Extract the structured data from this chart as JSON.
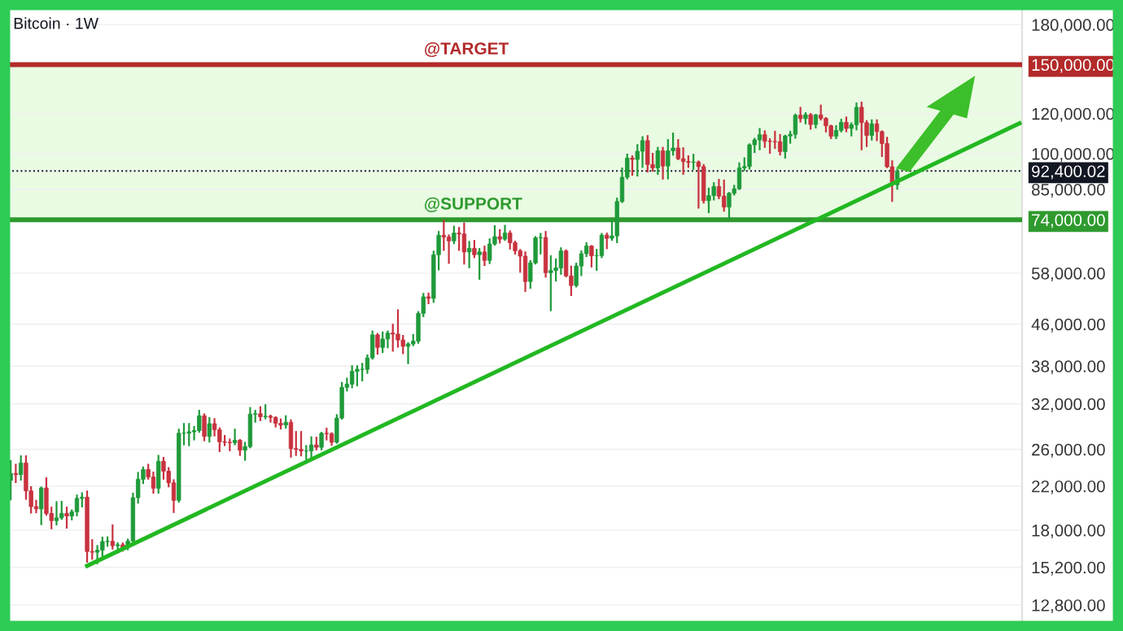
{
  "chart_data": {
    "type": "candlestick",
    "title": "Bitcoin · 1W",
    "categories": [
      null,
      null,
      null,
      null,
      null,
      null,
      null,
      null,
      null,
      null,
      null,
      null,
      null,
      null,
      null,
      null,
      null,
      null,
      null,
      null,
      null,
      null,
      null,
      null,
      null,
      null,
      null,
      null,
      null,
      null,
      null,
      null,
      null,
      null,
      null,
      null,
      null,
      null,
      null,
      null,
      null,
      null,
      null,
      null,
      null,
      null,
      null,
      null,
      null,
      null,
      null,
      null,
      null,
      null,
      null,
      null,
      null,
      null,
      null,
      null,
      null,
      null,
      null,
      null,
      null,
      null,
      null,
      null,
      null,
      null,
      null,
      null,
      null,
      null,
      null,
      null,
      null,
      null,
      null,
      null,
      null,
      null,
      null,
      null,
      null,
      null,
      null,
      null,
      null,
      null,
      null,
      null,
      null,
      null,
      null,
      null,
      null,
      null,
      null,
      null,
      null,
      null,
      null,
      null,
      null,
      null,
      null,
      null,
      null,
      null,
      null,
      null,
      null,
      null,
      null,
      null,
      null,
      null,
      null,
      null,
      null,
      null,
      null,
      null,
      null,
      null,
      null,
      null,
      null,
      null,
      null,
      null,
      null,
      null,
      null,
      null,
      null,
      null,
      null,
      null,
      null,
      null,
      null,
      null,
      null,
      null,
      null,
      null,
      null,
      null,
      null,
      null,
      null,
      null,
      null,
      null,
      null,
      null,
      null,
      null,
      null,
      null,
      null,
      null,
      null,
      null,
      null,
      null,
      null,
      null,
      null,
      null,
      null,
      null,
      null,
      null,
      null,
      null,
      null,
      null,
      null,
      null,
      null,
      null,
      null,
      null,
      null,
      null,
      null,
      null,
      null,
      null,
      null,
      null,
      null,
      null,
      null,
      null,
      null
    ],
    "colors": [
      "#1f9a3a",
      "#c8323f",
      "#1f9a3a",
      "#c8323f",
      "#c8323f",
      "#c8323f",
      "#1f9a3a",
      "#c8323f",
      "#c8323f",
      "#1f9a3a",
      "#1f9a3a",
      "#c8323f",
      "#1f9a3a",
      "#1f9a3a",
      "#1f9a3a",
      "#c8323f",
      "#c8323f",
      "#1f9a3a",
      "#1f9a3a",
      "#1f9a3a",
      "#c8323f",
      "#1f9a3a",
      "#c8323f",
      "#1f9a3a",
      "#1f9a3a",
      "#1f9a3a",
      "#1f9a3a",
      "#c8323f",
      "#c8323f",
      "#1f9a3a",
      "#c8323f",
      "#c8323f",
      "#c8323f",
      "#1f9a3a",
      "#1f9a3a",
      "#1f9a3a",
      "#1f9a3a",
      "#1f9a3a",
      "#c8323f",
      "#1f9a3a",
      "#c8323f",
      "#c8323f",
      "#c8323f",
      "#c8323f",
      "#1f9a3a",
      "#c8323f",
      "#1f9a3a",
      "#1f9a3a",
      "#1f9a3a",
      "#c8323f",
      "#1f9a3a",
      "#c8323f",
      "#c8323f",
      "#c8323f",
      "#1f9a3a",
      "#c8323f",
      "#c8323f",
      "#c8323f",
      "#1f9a3a",
      "#1f9a3a",
      "#c8323f",
      "#1f9a3a",
      "#c8323f",
      "#c8323f",
      "#1f9a3a",
      "#1f9a3a",
      "#1f9a3a",
      "#1f9a3a",
      "#1f9a3a",
      "#1f9a3a",
      "#1f9a3a",
      "#1f9a3a",
      "#c8323f",
      "#1f9a3a",
      "#1f9a3a",
      "#c8323f",
      "#c8323f",
      "#c8323f",
      "#1f9a3a",
      "#1f9a3a",
      "#1f9a3a",
      "#1f9a3a",
      "#c8323f",
      "#1f9a3a",
      "#1f9a3a",
      "#c8323f",
      "#c8323f",
      "#1f9a3a",
      "#c8323f",
      "#c8323f",
      "#1f9a3a",
      "#c8323f",
      "#1f9a3a",
      "#c8323f",
      "#1f9a3a",
      "#1f9a3a",
      "#c8323f",
      "#1f9a3a",
      "#c8323f",
      "#c8323f",
      "#c8323f",
      "#c8323f",
      "#1f9a3a",
      "#1f9a3a",
      "#1f9a3a",
      "#c8323f",
      "#1f9a3a",
      "#1f9a3a",
      "#1f9a3a",
      "#c8323f",
      "#c8323f",
      "#1f9a3a",
      "#1f9a3a",
      "#1f9a3a",
      "#c8323f",
      "#1f9a3a",
      "#1f9a3a",
      "#c8323f",
      "#1f9a3a",
      "#1f9a3a",
      "#1f9a3a",
      "#1f9a3a",
      "#c8323f",
      "#1f9a3a",
      "#1f9a3a",
      "#c8323f",
      "#c8323f",
      "#1f9a3a",
      "#c8323f",
      "#1f9a3a",
      "#1f9a3a",
      "#c8323f",
      "#c8323f",
      "#c8323f",
      "#1f9a3a",
      "#c8323f",
      "#c8323f",
      "#1f9a3a",
      "#1f9a3a",
      "#c8323f",
      "#c8323f",
      "#1f9a3a",
      "#1f9a3a",
      "#1f9a3a",
      "#1f9a3a",
      "#1f9a3a",
      "#1f9a3a",
      "#1f9a3a",
      "#c8323f",
      "#c8323f",
      "#c8323f",
      "#c8323f",
      "#1f9a3a",
      "#1f9a3a",
      "#1f9a3a",
      "#c8323f",
      "#1f9a3a",
      "#c8323f",
      "#1f9a3a",
      "#c8323f",
      "#c8323f",
      "#c8323f",
      "#1f9a3a",
      "#1f9a3a",
      "#c8323f",
      "#1f9a3a",
      "#1f9a3a",
      "#c8323f",
      "#c8323f",
      "#1f9a3a",
      "#c8323f",
      "#c8323f",
      "#c8323f",
      "#c8323f",
      "#1f9a3a",
      null,
      null,
      null,
      null,
      null,
      null,
      null,
      null,
      null,
      null,
      null,
      null,
      null,
      null,
      null,
      null,
      null,
      null,
      null,
      null,
      null,
      null,
      null,
      null
    ],
    "ohlc": [
      [
        22580,
        24670,
        20700,
        23300
      ],
      [
        23300,
        24250,
        22400,
        23180
      ],
      [
        23180,
        25200,
        22650,
        24440
      ],
      [
        24440,
        25200,
        20760,
        21520
      ],
      [
        21520,
        21900,
        19500,
        20040
      ],
      [
        20040,
        20580,
        19520,
        19830
      ],
      [
        19830,
        21860,
        18500,
        21820
      ],
      [
        21820,
        22800,
        19300,
        19420
      ],
      [
        19420,
        19950,
        18150,
        18800
      ],
      [
        18800,
        20450,
        18470,
        19040
      ],
      [
        19040,
        20480,
        18950,
        19420
      ],
      [
        19420,
        19950,
        18200,
        19200
      ],
      [
        19200,
        19700,
        18900,
        19570
      ],
      [
        19570,
        21080,
        19250,
        20800
      ],
      [
        20800,
        21300,
        20050,
        20910
      ],
      [
        20910,
        21470,
        15590,
        16330
      ],
      [
        16330,
        17200,
        15800,
        16280
      ],
      [
        16280,
        16750,
        15480,
        16430
      ],
      [
        16430,
        17400,
        16010,
        17090
      ],
      [
        17090,
        17420,
        16760,
        17110
      ],
      [
        17110,
        18400,
        16550,
        16770
      ],
      [
        16770,
        16960,
        16270,
        16840
      ],
      [
        16840,
        16950,
        16400,
        16620
      ],
      [
        16620,
        17250,
        16500,
        17130
      ],
      [
        17130,
        21260,
        17130,
        20870
      ],
      [
        20870,
        23370,
        20400,
        22700
      ],
      [
        22700,
        23950,
        22300,
        23730
      ],
      [
        23730,
        24250,
        22750,
        22930
      ],
      [
        22930,
        23400,
        21350,
        21780
      ],
      [
        21780,
        25250,
        21350,
        24630
      ],
      [
        24630,
        25020,
        22750,
        23550
      ],
      [
        23550,
        23880,
        21970,
        22330
      ],
      [
        22330,
        22600,
        19550,
        20620
      ],
      [
        20620,
        28450,
        20480,
        27990
      ],
      [
        27990,
        29200,
        26600,
        27990
      ],
      [
        27990,
        29200,
        26500,
        28170
      ],
      [
        28170,
        28800,
        27200,
        28330
      ],
      [
        28330,
        31000,
        28170,
        30300
      ],
      [
        30300,
        30500,
        27100,
        27590
      ],
      [
        27590,
        30000,
        26950,
        29230
      ],
      [
        29230,
        29850,
        27700,
        28430
      ],
      [
        28430,
        28620,
        25800,
        26920
      ],
      [
        26920,
        27650,
        26500,
        26850
      ],
      [
        26850,
        27200,
        25900,
        26800
      ],
      [
        26800,
        28450,
        26600,
        27100
      ],
      [
        27100,
        27150,
        25350,
        25910
      ],
      [
        25910,
        26800,
        24800,
        26340
      ],
      [
        26340,
        31400,
        26250,
        30530
      ],
      [
        30530,
        31000,
        29500,
        30590
      ],
      [
        30590,
        31500,
        29700,
        30170
      ],
      [
        30170,
        31800,
        29950,
        30240
      ],
      [
        30240,
        30330,
        29500,
        30080
      ],
      [
        30080,
        30100,
        28850,
        29280
      ],
      [
        29280,
        29800,
        28600,
        29050
      ],
      [
        29050,
        30250,
        28700,
        29410
      ],
      [
        29410,
        29690,
        25150,
        26100
      ],
      [
        26100,
        28150,
        25350,
        26000
      ],
      [
        26000,
        28150,
        25300,
        25820
      ],
      [
        25820,
        26400,
        24900,
        25830
      ],
      [
        25830,
        27480,
        24900,
        26530
      ],
      [
        26530,
        27430,
        26000,
        26250
      ],
      [
        26250,
        28050,
        26000,
        27980
      ],
      [
        27980,
        28580,
        27200,
        27920
      ],
      [
        27920,
        28000,
        26550,
        26860
      ],
      [
        26860,
        30400,
        26800,
        29990
      ],
      [
        29990,
        35200,
        29900,
        34500
      ],
      [
        34500,
        35900,
        34000,
        35000
      ],
      [
        35000,
        38000,
        34500,
        37100
      ],
      [
        37100,
        37980,
        34800,
        37450
      ],
      [
        37450,
        38400,
        35600,
        37450
      ],
      [
        37450,
        39900,
        36850,
        39450
      ],
      [
        39450,
        44500,
        39300,
        43800
      ],
      [
        43800,
        44000,
        40200,
        41370
      ],
      [
        41370,
        44300,
        40500,
        42990
      ],
      [
        42990,
        44500,
        41400,
        44180
      ],
      [
        44180,
        45900,
        40750,
        43950
      ],
      [
        43950,
        49000,
        41500,
        42800
      ],
      [
        42800,
        43600,
        40300,
        41580
      ],
      [
        41580,
        42200,
        38500,
        42030
      ],
      [
        42030,
        43800,
        41800,
        42580
      ],
      [
        42580,
        48600,
        42250,
        48300
      ],
      [
        48300,
        52800,
        47700,
        52100
      ],
      [
        52100,
        52900,
        50600,
        51730
      ],
      [
        51730,
        64000,
        50900,
        63100
      ],
      [
        63100,
        70000,
        59000,
        68950
      ],
      [
        68950,
        73780,
        64500,
        68400
      ],
      [
        68400,
        68900,
        60800,
        67200
      ],
      [
        67200,
        71700,
        66500,
        69650
      ],
      [
        69650,
        71300,
        64500,
        69350
      ],
      [
        69350,
        72800,
        60600,
        63900
      ],
      [
        63900,
        66900,
        59600,
        64950
      ],
      [
        64950,
        67200,
        62400,
        63100
      ],
      [
        63100,
        64800,
        56550,
        63900
      ],
      [
        63900,
        65500,
        60200,
        61500
      ],
      [
        61500,
        67700,
        60750,
        66270
      ],
      [
        66270,
        71900,
        66050,
        68500
      ],
      [
        68500,
        70600,
        66700,
        67750
      ],
      [
        67750,
        72000,
        67500,
        69650
      ],
      [
        69650,
        70200,
        64900,
        66650
      ],
      [
        66650,
        67000,
        63400,
        64250
      ],
      [
        64250,
        64500,
        58400,
        62700
      ],
      [
        62700,
        63800,
        53500,
        55850
      ],
      [
        55850,
        61300,
        54250,
        60800
      ],
      [
        60800,
        68400,
        60600,
        68170
      ],
      [
        68170,
        69400,
        63450,
        68250
      ],
      [
        68250,
        70000,
        57100,
        58150
      ],
      [
        58150,
        62700,
        49000,
        58700
      ],
      [
        58700,
        61800,
        56100,
        59400
      ],
      [
        59400,
        65000,
        57850,
        64200
      ],
      [
        64200,
        64400,
        57200,
        57300
      ],
      [
        57300,
        59800,
        52500,
        54850
      ],
      [
        54850,
        60600,
        54600,
        59950
      ],
      [
        59950,
        64100,
        57500,
        63400
      ],
      [
        63400,
        66500,
        62700,
        65650
      ],
      [
        65650,
        65650,
        59800,
        62800
      ],
      [
        62800,
        64500,
        58900,
        62850
      ],
      [
        62850,
        69400,
        62400,
        69000
      ],
      [
        69000,
        69500,
        65000,
        68000
      ],
      [
        68000,
        73600,
        67500,
        68750
      ],
      [
        68750,
        81500,
        66800,
        80400
      ],
      [
        80400,
        93500,
        80200,
        89800
      ],
      [
        89800,
        99600,
        89300,
        98000
      ],
      [
        98000,
        98800,
        90800,
        97400
      ],
      [
        97400,
        104000,
        90500,
        101100
      ],
      [
        101100,
        107800,
        94150,
        106100
      ],
      [
        106100,
        108350,
        92200,
        95200
      ],
      [
        95200,
        99900,
        92500,
        93700
      ],
      [
        93700,
        102700,
        91200,
        101300
      ],
      [
        101300,
        102700,
        89250,
        94500
      ],
      [
        94500,
        106400,
        89300,
        101300
      ],
      [
        101300,
        109600,
        99500,
        102600
      ],
      [
        102600,
        106400,
        97500,
        97700
      ],
      [
        97700,
        102500,
        91200,
        96450
      ],
      [
        96450,
        98800,
        94100,
        96150
      ],
      [
        96150,
        99500,
        93300,
        96250
      ],
      [
        96250,
        96500,
        78200,
        94250
      ],
      [
        94250,
        95000,
        80000,
        80700
      ],
      [
        80700,
        85300,
        76600,
        82600
      ],
      [
        82600,
        87450,
        81150,
        86100
      ],
      [
        86100,
        88750,
        81600,
        82400
      ],
      [
        82400,
        88500,
        77100,
        78400
      ],
      [
        78400,
        83600,
        74500,
        83500
      ],
      [
        83500,
        86400,
        83000,
        85200
      ],
      [
        85200,
        95700,
        85100,
        93750
      ],
      [
        93750,
        97900,
        92800,
        94300
      ],
      [
        94300,
        104350,
        93400,
        104100
      ],
      [
        104100,
        107000,
        100700,
        106450
      ],
      [
        106450,
        111900,
        102000,
        109000
      ],
      [
        109000,
        110700,
        103100,
        105800
      ],
      [
        105800,
        106800,
        100400,
        105700
      ],
      [
        105700,
        110500,
        102600,
        105600
      ],
      [
        105600,
        108900,
        99600,
        100950
      ],
      [
        100950,
        108500,
        98200,
        108400
      ],
      [
        108400,
        110500,
        105100,
        109200
      ],
      [
        109200,
        119500,
        107500,
        119100
      ],
      [
        119100,
        123200,
        115700,
        117300
      ],
      [
        117300,
        120250,
        114700,
        119400
      ],
      [
        119400,
        119800,
        112000,
        114200
      ],
      [
        114200,
        119300,
        112650,
        119300
      ],
      [
        119300,
        124500,
        116800,
        117400
      ],
      [
        117400,
        117600,
        110600,
        113500
      ],
      [
        113500,
        113600,
        107300,
        108250
      ],
      [
        108250,
        113400,
        107300,
        111150
      ],
      [
        111150,
        116700,
        110600,
        115300
      ],
      [
        115300,
        117900,
        110700,
        112150
      ],
      [
        112150,
        114800,
        108600,
        114050
      ],
      [
        114050,
        125700,
        111650,
        123500
      ],
      [
        123500,
        126200,
        102000,
        115150
      ],
      [
        115150,
        116000,
        103500,
        108650
      ],
      [
        108650,
        116400,
        106600,
        114550
      ],
      [
        114550,
        116400,
        106300,
        110550
      ],
      [
        110550,
        110700,
        98900,
        104700
      ],
      [
        104700,
        107500,
        94000,
        94200
      ],
      [
        94200,
        96600,
        80600,
        86800
      ],
      [
        86800,
        93000,
        85200,
        92400
      ],
      null,
      null,
      null,
      null,
      null,
      null,
      null,
      null,
      null,
      null,
      null,
      null,
      null,
      null,
      null,
      null,
      null,
      null,
      null,
      null,
      null,
      null,
      null,
      null
    ],
    "series": [
      {
        "type": "line",
        "color": "#22b822",
        "values": [
          null,
          null,
          null,
          null,
          null,
          null,
          null,
          null,
          null,
          null,
          null,
          null,
          null,
          null,
          null,
          15300,
          null,
          null,
          null,
          null,
          null,
          null,
          null,
          null,
          null,
          null,
          null,
          null,
          null,
          null,
          null,
          null,
          null,
          null,
          null,
          null,
          null,
          null,
          null,
          null,
          null,
          null,
          null,
          null,
          null,
          null,
          null,
          null,
          null,
          null,
          null,
          null,
          null,
          null,
          null,
          null,
          null,
          null,
          null,
          null,
          null,
          null,
          null,
          null,
          null,
          null,
          null,
          null,
          null,
          null,
          null,
          null,
          null,
          null,
          null,
          null,
          null,
          null,
          null,
          null,
          null,
          null,
          null,
          null,
          null,
          null,
          null,
          null,
          null,
          null,
          null,
          null,
          null,
          null,
          null,
          null,
          null,
          null,
          null,
          null,
          null,
          null,
          null,
          null,
          null,
          null,
          null,
          null,
          null,
          null,
          null,
          null,
          null,
          null,
          null,
          null,
          null,
          null,
          null,
          null,
          null,
          null,
          null,
          null,
          null,
          null,
          null,
          null,
          null,
          null,
          null,
          null,
          null,
          null,
          null,
          null,
          null,
          null,
          null,
          null,
          null,
          null,
          null,
          null,
          null,
          null,
          null,
          null,
          null,
          null,
          null,
          null,
          null,
          null,
          null,
          null,
          null,
          null,
          null,
          null,
          null,
          null,
          null,
          null,
          null,
          null,
          null,
          null,
          null,
          null,
          null,
          null,
          null,
          null,
          null,
          null,
          null,
          null,
          null,
          null,
          null,
          null,
          null,
          null,
          null,
          null,
          null,
          null,
          null,
          null,
          null,
          null,
          null,
          null,
          null,
          null,
          null,
          null,
          114800
        ]
      }
    ],
    "log": true,
    "ylim": [
      11800,
      194000
    ],
    "yticks": [
      {
        "value": 12800,
        "label": "12,800.00"
      },
      {
        "value": 15200,
        "label": "15,200.00"
      },
      {
        "value": 18000,
        "label": "18,000.00"
      },
      {
        "value": 22000,
        "label": "22,000.00"
      },
      {
        "value": 26000,
        "label": "26,000.00"
      },
      {
        "value": 32000,
        "label": "32,000.00"
      },
      {
        "value": 38000,
        "label": "38,000.00"
      },
      {
        "value": 46000,
        "label": "46,000.00"
      },
      {
        "value": 58000,
        "label": "58,000.00"
      },
      {
        "value": 74000,
        "label": "74,000.00"
      },
      {
        "value": 85000,
        "label": "85,000.00"
      },
      {
        "value": 92400.02,
        "label": "92,400.02"
      },
      {
        "value": 100000,
        "label": "100,000.00"
      },
      {
        "value": 120000,
        "label": "120,000.00"
      },
      {
        "value": 150000,
        "label": "150,000.00"
      },
      {
        "value": 180000,
        "label": "180,000.00"
      }
    ],
    "tick_labels": "y",
    "grid": "y",
    "bands": [
      {
        "axis": "y",
        "from": 74000,
        "to": 150000,
        "color": "#e9fbe2"
      }
    ],
    "ref_lines": [
      {
        "axis": "y",
        "value": 150000,
        "label": "@TARGET",
        "color": "#b32a2a"
      },
      {
        "axis": "y",
        "value": 74000,
        "label": "@SUPPORT",
        "color": "#2e9a2e"
      },
      {
        "axis": "y",
        "value": 92400.02,
        "label": null,
        "color": "#131722",
        "line_style": "dotted"
      }
    ]
  }
}
